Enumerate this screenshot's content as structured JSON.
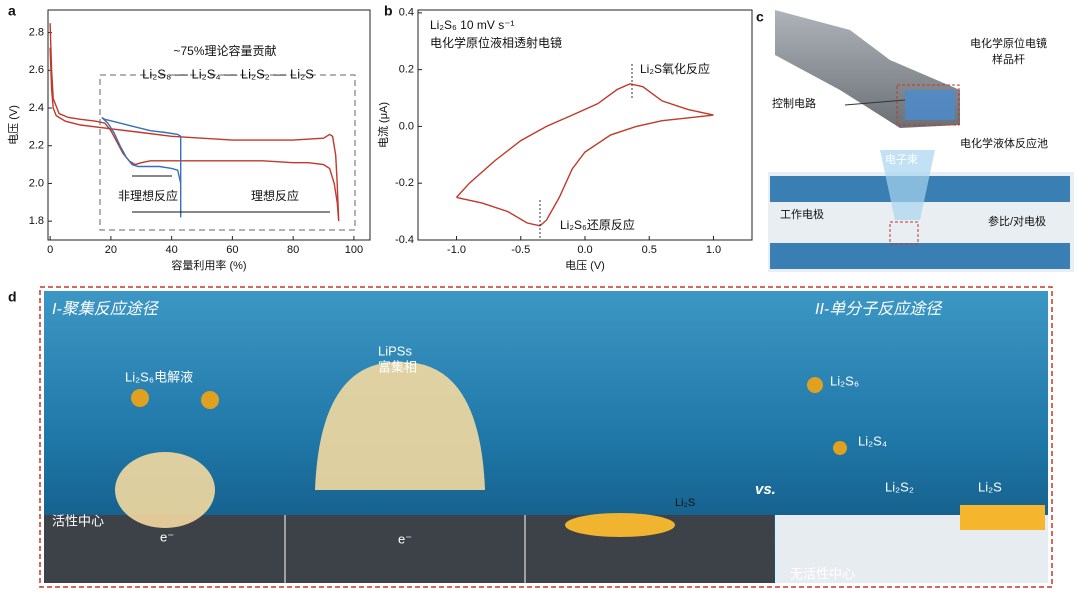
{
  "panel_labels": [
    "a",
    "b",
    "c",
    "d"
  ],
  "chart_data": [
    {
      "type": "line",
      "x_label": "容量利用率 (%)",
      "y_label": "电压 (V)",
      "xlim": [
        -0.7,
        105.3
      ],
      "ylim": [
        1.7,
        2.92
      ],
      "xticks": [
        0,
        20,
        40,
        60,
        80,
        100
      ],
      "yticks": [
        1.8,
        {
          "value": 2.0,
          "label": "2.0"
        },
        2.2,
        2.4,
        2.6,
        2.8
      ],
      "series": [
        {
          "color": "#c0392b",
          "x": [
            0,
            0.5,
            1,
            3,
            6,
            10,
            15,
            18,
            20,
            22,
            24,
            26,
            28,
            30,
            33,
            40,
            50,
            60,
            70,
            80,
            85,
            90,
            92,
            93.5,
            94.5,
            95,
            95,
            94.5,
            94,
            93,
            92,
            90,
            80,
            70,
            60,
            50,
            40,
            30,
            20,
            10,
            5,
            2,
            1,
            0.5,
            0
          ],
          "values": [
            2.85,
            2.6,
            2.45,
            2.37,
            2.35,
            2.34,
            2.33,
            2.32,
            2.28,
            2.22,
            2.16,
            2.12,
            2.1,
            2.11,
            2.12,
            2.12,
            2.12,
            2.12,
            2.12,
            2.11,
            2.11,
            2.1,
            2.08,
            2.0,
            1.9,
            1.8,
            1.8,
            2.0,
            2.15,
            2.25,
            2.26,
            2.24,
            2.23,
            2.23,
            2.23,
            2.24,
            2.25,
            2.27,
            2.29,
            2.31,
            2.33,
            2.36,
            2.4,
            2.5,
            2.72
          ]
        },
        {
          "color": "#3b6fb6",
          "x": [
            17,
            19,
            21,
            23,
            25,
            27,
            29,
            32,
            36,
            40,
            42,
            43,
            43,
            43,
            42,
            38,
            33,
            28,
            23,
            18,
            17
          ],
          "values": [
            2.35,
            2.32,
            2.27,
            2.2,
            2.14,
            2.1,
            2.09,
            2.09,
            2.09,
            2.08,
            2.07,
            2.0,
            1.82,
            2.25,
            2.26,
            2.27,
            2.28,
            2.3,
            2.32,
            2.34,
            2.35
          ]
        }
      ],
      "annotations": [
        "~75%理论容量贡献",
        "Li₂S₈ — Li₂S₄ — Li₂S₂ — Li₂S",
        "非理想反应",
        "理想反应"
      ]
    },
    {
      "type": "line",
      "x_label": "电压 (V)",
      "y_label": "电流 (μA)",
      "xlim": [
        -1.3,
        1.3
      ],
      "ylim": [
        -0.4,
        0.41
      ],
      "xticks": [
        {
          "value": -1,
          "label": "-1.0"
        },
        -0.5,
        {
          "value": 0,
          "label": "0.0"
        },
        0.5,
        {
          "value": 1,
          "label": "1.0"
        }
      ],
      "yticks": [
        -0.4,
        -0.2,
        {
          "value": 0,
          "label": "0.0"
        },
        0.2,
        0.4
      ],
      "series": [
        {
          "color": "#c0392b",
          "x": [
            -1.0,
            -0.9,
            -0.7,
            -0.5,
            -0.3,
            -0.1,
            0.1,
            0.25,
            0.35,
            0.45,
            0.6,
            0.8,
            1.0,
            0.8,
            0.6,
            0.4,
            0.2,
            0.0,
            -0.1,
            -0.2,
            -0.3,
            -0.35,
            -0.45,
            -0.6,
            -0.8,
            -1.0
          ],
          "values": [
            -0.25,
            -0.2,
            -0.12,
            -0.05,
            0.0,
            0.04,
            0.08,
            0.13,
            0.15,
            0.14,
            0.09,
            0.06,
            0.04,
            0.03,
            0.02,
            0.0,
            -0.03,
            -0.09,
            -0.15,
            -0.25,
            -0.33,
            -0.35,
            -0.34,
            -0.3,
            -0.27,
            -0.25
          ]
        }
      ],
      "annotations": [
        "Li₂S₆ 10 mV s⁻¹",
        "电化学原位液相透射电镜",
        "Li₂S氧化反应",
        "Li₂S₆还原反应"
      ]
    }
  ],
  "panel_c": {
    "holder": "电化学原位电镜",
    "holder_2": "样品杆",
    "circuit": "控制电路",
    "cell": "电化学液体反应池",
    "beam": "电子束",
    "working": "工作电极",
    "counter": "参比/对电极"
  },
  "panel_d": {
    "path_1": "I-聚集反应途径",
    "path_2": "II-单分子反应途径",
    "electrolyte": "Li₂S₆电解液",
    "rich_1": "LiPSs",
    "rich_2": "富集相",
    "active": "活性中心",
    "e1": "e⁻",
    "e2": "e⁻",
    "product": "Li₂S",
    "vs": "vs.",
    "s6": "Li₂S₆",
    "s4": "Li₂S₄",
    "s2": "Li₂S₂",
    "s": "Li₂S",
    "inactive": "无活性中心"
  }
}
